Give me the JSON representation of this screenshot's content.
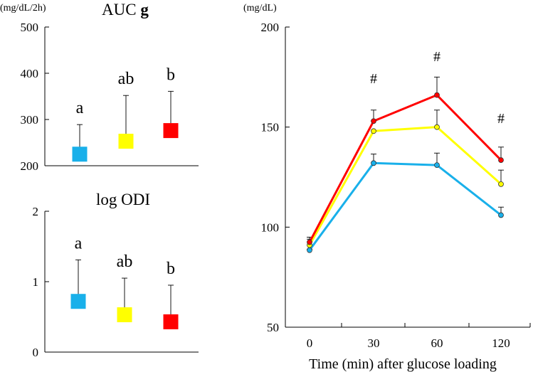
{
  "chart_data": [
    {
      "type": "bar",
      "panel": "top-left",
      "title": "AUC g",
      "title_plain": "AUC",
      "title_bold": "g",
      "unit_label": "(mg/dL/2h)",
      "ylim": [
        200,
        500
      ],
      "yticks": [
        200,
        300,
        400,
        500
      ],
      "ytick_labels": [
        "200",
        "300",
        "400",
        "500"
      ],
      "grid": false,
      "series": [
        {
          "name": "blue",
          "color": "#19b0ea",
          "value": 225,
          "error_top": 289,
          "letter": "a"
        },
        {
          "name": "yellow",
          "color": "#ffff00",
          "value": 253,
          "error_top": 352,
          "letter": "ab"
        },
        {
          "name": "red",
          "color": "#ff0000",
          "value": 276,
          "error_top": 361,
          "letter": "b"
        }
      ]
    },
    {
      "type": "bar",
      "panel": "bottom-left",
      "title": "log ODI",
      "ylim": [
        0,
        2
      ],
      "yticks": [
        0,
        1,
        2
      ],
      "ytick_labels": [
        "0",
        "1",
        "2"
      ],
      "grid": false,
      "series": [
        {
          "name": "blue",
          "color": "#19b0ea",
          "value": 0.72,
          "error_top": 1.31,
          "letter": "a"
        },
        {
          "name": "yellow",
          "color": "#ffff00",
          "value": 0.53,
          "error_top": 1.05,
          "letter": "ab"
        },
        {
          "name": "red",
          "color": "#ff0000",
          "value": 0.43,
          "error_top": 0.95,
          "letter": "b"
        }
      ]
    },
    {
      "type": "line",
      "panel": "right",
      "unit_label": "(mg/dL)",
      "xlabel": "Time (min) after glucose loading",
      "x": [
        0,
        30,
        60,
        120
      ],
      "xtick_labels": [
        "0",
        "30",
        "60",
        "120"
      ],
      "ylim": [
        50,
        200
      ],
      "yticks": [
        50,
        100,
        150,
        200
      ],
      "ytick_labels": [
        "50",
        "100",
        "150",
        "200"
      ],
      "grid": false,
      "series": [
        {
          "name": "red",
          "color": "#ff0000",
          "values": [
            92.5,
            153,
            166,
            133.5
          ],
          "error_top": [
            95,
            158.5,
            175,
            140
          ]
        },
        {
          "name": "yellow",
          "color": "#ffff00",
          "values": [
            91,
            148,
            150,
            121.5
          ],
          "error_top": [
            94,
            148,
            158.5,
            128.5
          ]
        },
        {
          "name": "blue",
          "color": "#19b0ea",
          "values": [
            88.5,
            132,
            131,
            106
          ],
          "error_top": [
            89,
            136.5,
            137,
            110
          ]
        }
      ],
      "annotations": [
        {
          "x": 30,
          "text": "#",
          "y": 172
        },
        {
          "x": 60,
          "text": "#",
          "y": 183
        },
        {
          "x": 120,
          "text": "#",
          "y": 152
        }
      ]
    }
  ]
}
